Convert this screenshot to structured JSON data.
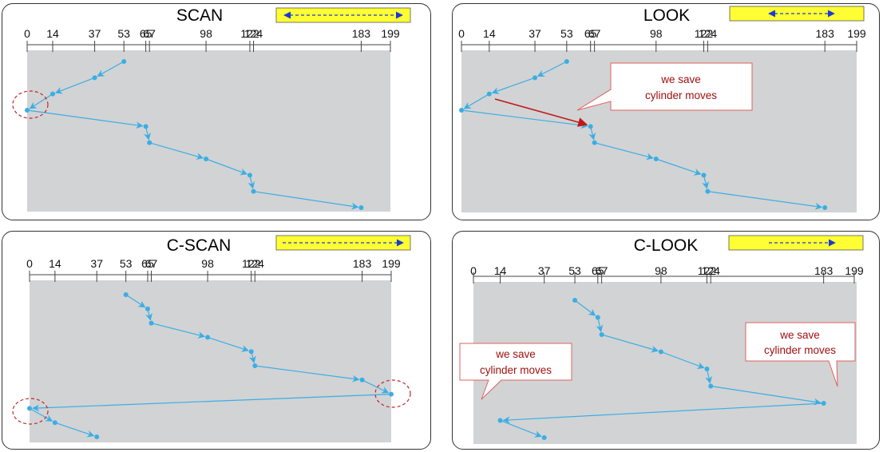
{
  "tick_labels": [
    "0",
    "14",
    "37",
    "53",
    "65",
    "67",
    "98",
    "122",
    "124",
    "183",
    "199"
  ],
  "panels": [
    {
      "id": "scan",
      "title": "SCAN",
      "direction": "both",
      "sequence": [
        53,
        37,
        14,
        0,
        65,
        67,
        98,
        122,
        124,
        183
      ],
      "highlight": [
        0
      ]
    },
    {
      "id": "look",
      "title": "LOOK",
      "direction": "both",
      "sequence": [
        53,
        37,
        14,
        0,
        65,
        67,
        98,
        122,
        124,
        183
      ],
      "note": "we save\ncylinder moves"
    },
    {
      "id": "cscan",
      "title": "C-SCAN",
      "direction": "right",
      "sequence": [
        53,
        65,
        67,
        98,
        122,
        124,
        183,
        199,
        0,
        14,
        37
      ],
      "highlight": [
        199,
        0
      ]
    },
    {
      "id": "clook",
      "title": "C-LOOK",
      "direction": "right",
      "sequence": [
        53,
        65,
        67,
        98,
        122,
        124,
        183,
        14,
        37
      ],
      "notes": [
        "we save\ncylinder moves",
        "we save\ncylinder moves"
      ]
    }
  ],
  "colors": {
    "plot_bg": "#d2d3d4",
    "path": "#3aaee4",
    "highlight": "#c0272d",
    "banner": "#ffff33",
    "banner_arrow": "#1a3ad6",
    "note_text": "#a01010",
    "note_border": "#e06060",
    "look_arrow": "#c01818"
  }
}
